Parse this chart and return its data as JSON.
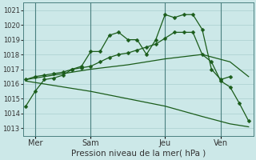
{
  "xlabel": "Pression niveau de la mer( hPa )",
  "ylim": [
    1012.5,
    1021.5
  ],
  "yticks": [
    1013,
    1014,
    1015,
    1016,
    1017,
    1018,
    1019,
    1020,
    1021
  ],
  "xtick_labels": [
    "Mer",
    "Sam",
    "Jeu",
    "Ven"
  ],
  "xtick_positions": [
    1,
    7,
    15,
    21
  ],
  "vlines": [
    1,
    7,
    15,
    21
  ],
  "bg_color": "#cce8e8",
  "grid_color": "#aacfcf",
  "line_color": "#1a5c1a",
  "series1_x": [
    0,
    1,
    2,
    3,
    4,
    5,
    6,
    7,
    8,
    9,
    10,
    11,
    12,
    13,
    14,
    15,
    16,
    17,
    18,
    19,
    20,
    21,
    22
  ],
  "series1_y": [
    1014.5,
    1015.5,
    1016.3,
    1016.4,
    1016.6,
    1017.0,
    1017.2,
    1018.2,
    1018.2,
    1019.3,
    1019.5,
    1019.0,
    1019.0,
    1018.0,
    1019.0,
    1020.7,
    1020.5,
    1020.7,
    1020.7,
    1019.7,
    1017.0,
    1016.3,
    1016.5
  ],
  "series2_x": [
    0,
    1,
    2,
    3,
    4,
    5,
    6,
    7,
    8,
    9,
    10,
    11,
    12,
    13,
    14,
    15,
    16,
    17,
    18,
    19,
    20,
    21,
    22,
    23,
    24
  ],
  "series2_y": [
    1016.3,
    1016.5,
    1016.6,
    1016.7,
    1016.8,
    1017.0,
    1017.1,
    1017.2,
    1017.5,
    1017.8,
    1018.0,
    1018.1,
    1018.3,
    1018.5,
    1018.7,
    1019.1,
    1019.5,
    1019.5,
    1019.5,
    1018.0,
    1017.5,
    1016.2,
    1015.8,
    1014.7,
    1013.5
  ],
  "series3_x": [
    0,
    3,
    7,
    11,
    15,
    19,
    22,
    24
  ],
  "series3_y": [
    1016.3,
    1016.6,
    1017.0,
    1017.3,
    1017.7,
    1018.0,
    1017.5,
    1016.5
  ],
  "series4_x": [
    0,
    3,
    7,
    11,
    15,
    19,
    22,
    24
  ],
  "series4_y": [
    1016.2,
    1015.9,
    1015.5,
    1015.0,
    1014.5,
    1013.8,
    1013.3,
    1013.1
  ],
  "figsize": [
    3.2,
    2.0
  ],
  "dpi": 100
}
